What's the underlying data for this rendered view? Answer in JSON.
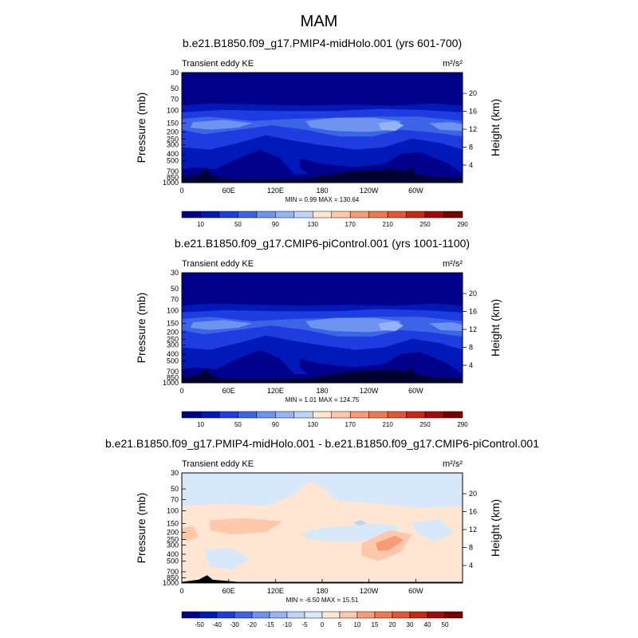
{
  "page_title": "MAM",
  "chart_data": [
    {
      "type": "contour",
      "title": "b.e21.B1850.f09_g17.PMIP4-midHolo.001 (yrs 601-700)",
      "left_label": "Transient eddy KE",
      "units": "m²/s²",
      "ylabel": "Pressure (mb)",
      "y2label": "Height (km)",
      "x_ticks": [
        "0",
        "60E",
        "120E",
        "180",
        "120W",
        "60W"
      ],
      "x_tick_lon": [
        0,
        60,
        120,
        180,
        240,
        300
      ],
      "xlim": [
        0,
        360
      ],
      "y_ticks": [
        30,
        50,
        70,
        100,
        150,
        200,
        250,
        300,
        400,
        500,
        700,
        850,
        1000
      ],
      "ylim": [
        1000,
        30
      ],
      "y_scale": "log",
      "height_ticks": [
        20,
        16,
        12,
        8,
        4
      ],
      "stats_label": "MIN =   0.99  MAX = 130.64",
      "colorbar_levels": [
        10,
        50,
        90,
        130,
        170,
        210,
        250,
        290
      ],
      "colorbar_colors": [
        "#00008b",
        "#0019b8",
        "#1e3ce0",
        "#3c64e6",
        "#6e94f0",
        "#96b4f5",
        "#bed2fa",
        "#ffe6d2",
        "#ffc8aa",
        "#fa9b78",
        "#f07850",
        "#e65532",
        "#c82814",
        "#a00a0a",
        "#780000"
      ],
      "variant": "full"
    },
    {
      "type": "contour",
      "title": "b.e21.B1850.f09_g17.CMIP6-piControl.001 (yrs 1001-1100)",
      "left_label": "Transient eddy KE",
      "units": "m²/s²",
      "ylabel": "Pressure (mb)",
      "y2label": "Height (km)",
      "x_ticks": [
        "0",
        "60E",
        "120E",
        "180",
        "120W",
        "60W"
      ],
      "x_tick_lon": [
        0,
        60,
        120,
        180,
        240,
        300
      ],
      "xlim": [
        0,
        360
      ],
      "y_ticks": [
        30,
        50,
        70,
        100,
        150,
        200,
        250,
        300,
        400,
        500,
        700,
        850,
        1000
      ],
      "ylim": [
        1000,
        30
      ],
      "y_scale": "log",
      "height_ticks": [
        20,
        16,
        12,
        8,
        4
      ],
      "stats_label": "MIN =   1.01  MAX = 124.75",
      "colorbar_levels": [
        10,
        50,
        90,
        130,
        170,
        210,
        250,
        290
      ],
      "colorbar_colors": [
        "#00008b",
        "#0019b8",
        "#1e3ce0",
        "#3c64e6",
        "#6e94f0",
        "#96b4f5",
        "#bed2fa",
        "#ffe6d2",
        "#ffc8aa",
        "#fa9b78",
        "#f07850",
        "#e65532",
        "#c82814",
        "#a00a0a",
        "#780000"
      ],
      "variant": "full"
    },
    {
      "type": "contour",
      "title": "b.e21.B1850.f09_g17.PMIP4-midHolo.001 - b.e21.B1850.f09_g17.CMIP6-piControl.001",
      "left_label": "Transient eddy KE",
      "units": "m²/s²",
      "ylabel": "Pressure (mb)",
      "y2label": "Height (km)",
      "x_ticks": [
        "0",
        "60E",
        "120E",
        "180",
        "120W",
        "60W"
      ],
      "x_tick_lon": [
        0,
        60,
        120,
        180,
        240,
        300
      ],
      "xlim": [
        0,
        360
      ],
      "y_ticks": [
        30,
        50,
        70,
        100,
        150,
        200,
        250,
        300,
        400,
        500,
        700,
        850,
        1000
      ],
      "ylim": [
        1000,
        30
      ],
      "y_scale": "log",
      "height_ticks": [
        20,
        16,
        12,
        8,
        4
      ],
      "stats_label": "MIN =  -6.50  MAX =  15.51",
      "colorbar_levels": [
        -50,
        -40,
        -30,
        -20,
        -15,
        -10,
        -5,
        0,
        5,
        10,
        15,
        20,
        30,
        40,
        50
      ],
      "colorbar_colors": [
        "#00008b",
        "#0019b8",
        "#1e3ce0",
        "#3c64e6",
        "#6e94f0",
        "#96b4f5",
        "#bed2fa",
        "#d7e8fa",
        "#ffe6d2",
        "#ffc8aa",
        "#fa9b78",
        "#f07850",
        "#e65532",
        "#c82814",
        "#a00a0a",
        "#780000"
      ],
      "variant": "diff"
    }
  ]
}
